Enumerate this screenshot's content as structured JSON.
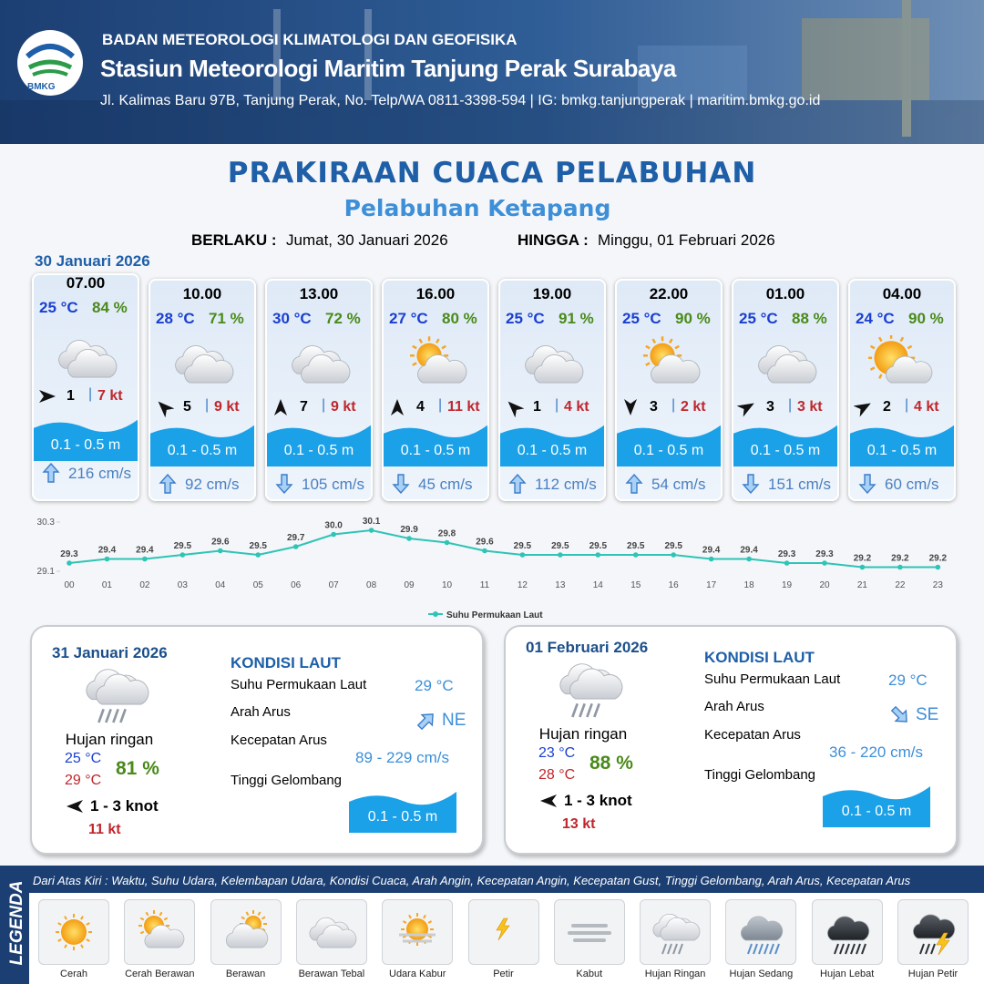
{
  "header": {
    "agency": "BADAN METEOROLOGI KLIMATOLOGI DAN GEOFISIKA",
    "station": "Stasiun Meteorologi Maritim Tanjung Perak Surabaya",
    "address": "Jl. Kalimas Baru 97B, Tanjung Perak, No. Telp/WA 0811-3398-594 | IG: bmkg.tanjungperak | maritim.bmkg.go.id",
    "logo": "BMKG"
  },
  "title": "PRAKIRAAN CUACA PELABUHAN",
  "subtitle": "Pelabuhan Ketapang",
  "validity": {
    "from_label": "BERLAKU :",
    "from": "Jumat, 30 Januari 2026",
    "to_label": "HINGGA :",
    "to": "Minggu, 01 Februari 2026"
  },
  "date": "30 Januari 2026",
  "slots": [
    {
      "time": "07.00",
      "temp": "25 °C",
      "humidity": "84 %",
      "wind": "1",
      "gust": "7 kt",
      "wave": "0.1 - 0.5 m",
      "current": "216 cm/s"
    },
    {
      "time": "10.00",
      "temp": "28 °C",
      "humidity": "71 %",
      "wind": "5",
      "gust": "9 kt",
      "wave": "0.1 - 0.5 m",
      "current": "92 cm/s"
    },
    {
      "time": "13.00",
      "temp": "30 °C",
      "humidity": "72 %",
      "wind": "7",
      "gust": "9 kt",
      "wave": "0.1 - 0.5 m",
      "current": "105 cm/s"
    },
    {
      "time": "16.00",
      "temp": "27 °C",
      "humidity": "80 %",
      "wind": "4",
      "gust": "11 kt",
      "wave": "0.1 - 0.5 m",
      "current": "45 cm/s"
    },
    {
      "time": "19.00",
      "temp": "25 °C",
      "humidity": "91 %",
      "wind": "1",
      "gust": "4 kt",
      "wave": "0.1 - 0.5 m",
      "current": "112 cm/s"
    },
    {
      "time": "22.00",
      "temp": "25 °C",
      "humidity": "90 %",
      "wind": "3",
      "gust": "2 kt",
      "wave": "0.1 - 0.5 m",
      "current": "54 cm/s"
    },
    {
      "time": "01.00",
      "temp": "25 °C",
      "humidity": "88 %",
      "wind": "3",
      "gust": "3 kt",
      "wave": "0.1 - 0.5 m",
      "current": "151 cm/s"
    },
    {
      "time": "04.00",
      "temp": "24 °C",
      "humidity": "90 %",
      "wind": "2",
      "gust": "4 kt",
      "wave": "0.1 - 0.5 m",
      "current": "60 cm/s"
    }
  ],
  "chart_data": {
    "type": "line",
    "categories": [
      "00",
      "01",
      "02",
      "03",
      "04",
      "05",
      "06",
      "07",
      "08",
      "09",
      "10",
      "11",
      "12",
      "13",
      "14",
      "15",
      "16",
      "17",
      "18",
      "19",
      "20",
      "21",
      "22",
      "23"
    ],
    "series": [
      {
        "name": "Suhu Permukaan Laut",
        "color": "#2ec4b6",
        "values": [
          29.3,
          29.4,
          29.4,
          29.5,
          29.6,
          29.5,
          29.7,
          30.0,
          30.1,
          29.9,
          29.8,
          29.6,
          29.5,
          29.5,
          29.5,
          29.5,
          29.5,
          29.4,
          29.4,
          29.3,
          29.3,
          29.2,
          29.2,
          29.2
        ],
        "value_labels": [
          "29.3",
          "29.4",
          "29.4",
          "29.5",
          "29.6",
          "29.5",
          "29.7",
          "30.0",
          "30.1",
          "29.9",
          "29.8",
          "29.6",
          "29.5",
          "29.5",
          "29.5",
          "29.5",
          "29.5",
          "29.4",
          "29.4",
          "29.3",
          "29.3",
          "29.2",
          "29.2",
          "29.2"
        ]
      }
    ],
    "ylim": [
      29.1,
      30.3
    ],
    "yticks": [
      29.1,
      30.3
    ],
    "legend": "bottom"
  },
  "days": [
    {
      "date": "31 Januari 2026",
      "weather": "Hujan ringan",
      "temp_min": "25 °C",
      "temp_max": "29 °C",
      "humidity": "81 %",
      "wind": "1 - 3 knot",
      "gust": "11 kt",
      "heading": "KONDISI LAUT",
      "labels": [
        "Suhu Permukaan Laut",
        "Arah Arus",
        "Kecepatan Arus",
        "Tinggi Gelombang"
      ],
      "sst": "29 °C",
      "current_dir": "NE",
      "current_speed": "89 - 229 cm/s",
      "wave": "0.1 - 0.5 m"
    },
    {
      "date": "01 Februari 2026",
      "weather": "Hujan ringan",
      "temp_min": "23 °C",
      "temp_max": "28 °C",
      "humidity": "88 %",
      "wind": "1 - 3 knot",
      "gust": "13 kt",
      "heading": "KONDISI LAUT",
      "labels": [
        "Suhu Permukaan Laut",
        "Arah Arus",
        "Kecepatan Arus",
        "Tinggi Gelombang"
      ],
      "sst": "29 °C",
      "current_dir": "SE",
      "current_speed": "36 - 220 cm/s",
      "wave": "0.1 - 0.5 m"
    }
  ],
  "legend": {
    "title": "LEGENDA",
    "description": "Dari Atas Kiri : Waktu, Suhu Udara, Kelembapan Udara, Kondisi Cuaca, Arah Angin, Kecepatan Angin, Kecepatan Gust, Tinggi Gelombang, Arah Arus, Kecepatan Arus",
    "items": [
      "Cerah",
      "Cerah Berawan",
      "Berawan",
      "Berawan Tebal",
      "Udara Kabur",
      "Petir",
      "Kabut",
      "Hujan Ringan",
      "Hujan Sedang",
      "Hujan Lebat",
      "Hujan Petir"
    ]
  }
}
